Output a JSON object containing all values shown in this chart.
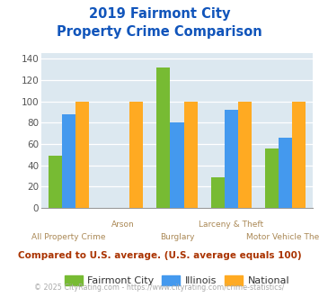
{
  "title_line1": "2019 Fairmont City",
  "title_line2": "Property Crime Comparison",
  "categories": [
    "All Property Crime",
    "Arson",
    "Burglary",
    "Larceny & Theft",
    "Motor Vehicle Theft"
  ],
  "series": {
    "Fairmont City": [
      49,
      0,
      132,
      29,
      56
    ],
    "Illinois": [
      88,
      0,
      80,
      92,
      66
    ],
    "National": [
      100,
      100,
      100,
      100,
      100
    ]
  },
  "colors": {
    "Fairmont City": "#77bb33",
    "Illinois": "#4499ee",
    "National": "#ffaa22"
  },
  "ylim": [
    0,
    145
  ],
  "yticks": [
    0,
    20,
    40,
    60,
    80,
    100,
    120,
    140
  ],
  "plot_bg": "#dce8f0",
  "title_color": "#1155bb",
  "xlabel_color": "#aa8855",
  "footer_text": "Compared to U.S. average. (U.S. average equals 100)",
  "footer_color": "#aa3300",
  "copyright_text": "© 2025 CityRating.com - https://www.cityrating.com/crime-statistics/",
  "copyright_color": "#aaaaaa",
  "bar_width": 0.25
}
